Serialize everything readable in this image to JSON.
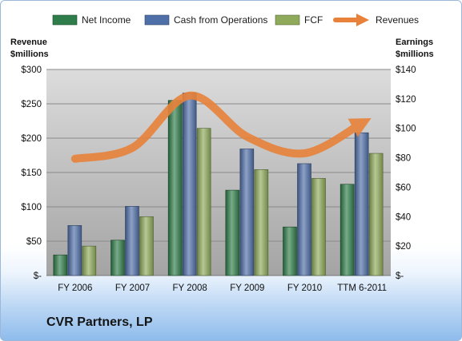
{
  "company": "CVR Partners, LP",
  "chart_data": {
    "type": "bar",
    "categories": [
      "FY 2006",
      "FY 2007",
      "FY 2008",
      "FY 2009",
      "FY 2010",
      "TTM 6-2011"
    ],
    "series": [
      {
        "name": "Net Income",
        "axis": "right",
        "color": "#2f7d4a",
        "values": [
          14,
          24,
          119,
          58,
          33,
          62
        ]
      },
      {
        "name": "Cash from Operations",
        "axis": "right",
        "color": "#4f6fa8",
        "values": [
          34,
          47,
          124,
          86,
          76,
          97
        ]
      },
      {
        "name": "FCF",
        "axis": "right",
        "color": "#8eaa5a",
        "values": [
          20,
          40,
          100,
          72,
          66,
          83
        ]
      },
      {
        "name": "Revenues",
        "axis": "left",
        "type": "line",
        "color": "#e8823a",
        "values": [
          170,
          186,
          262,
          202,
          178,
          222
        ]
      }
    ],
    "left_axis": {
      "title_line1": "Revenue",
      "title_line2": "$millions",
      "range": [
        0,
        300
      ],
      "ticks": [
        "$-",
        "$50",
        "$100",
        "$150",
        "$200",
        "$250",
        "$300"
      ]
    },
    "right_axis": {
      "title_line1": "Earnings",
      "title_line2": "$millions",
      "range": [
        0,
        140
      ],
      "ticks": [
        "$-",
        "$20",
        "$40",
        "$60",
        "$80",
        "$100",
        "$120",
        "$140"
      ]
    },
    "grid": true,
    "legend_position": "top"
  }
}
